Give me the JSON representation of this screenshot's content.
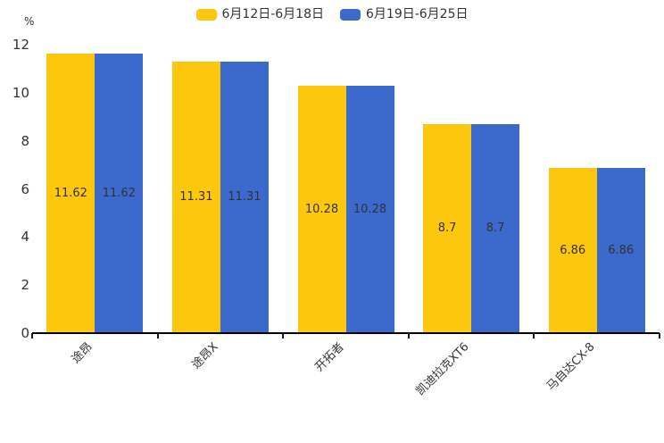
{
  "chart_data": {
    "type": "bar",
    "title": "",
    "unit_label": "%",
    "categories": [
      "途昂",
      "途昂X",
      "开拓者",
      "凯迪拉克XT6",
      "马自达CX-8"
    ],
    "series": [
      {
        "name": "6月12日-6月18日",
        "color": "#FDC70D",
        "values": [
          11.62,
          11.31,
          10.28,
          8.7,
          6.86
        ]
      },
      {
        "name": "6月19日-6月25日",
        "color": "#3B69CC",
        "values": [
          11.62,
          11.31,
          10.28,
          8.7,
          6.86
        ]
      }
    ],
    "data_labels": [
      [
        "11.62",
        "11.31",
        "10.28",
        "8.7",
        "6.86"
      ],
      [
        "11.62",
        "11.31",
        "10.28",
        "8.7",
        "6.86"
      ]
    ],
    "ylim": [
      0,
      12
    ],
    "yticks": [
      0,
      2,
      4,
      6,
      8,
      10,
      12
    ],
    "grid": false,
    "legend_position": "top",
    "axis_color": "#000000",
    "label_color": "#333333"
  }
}
